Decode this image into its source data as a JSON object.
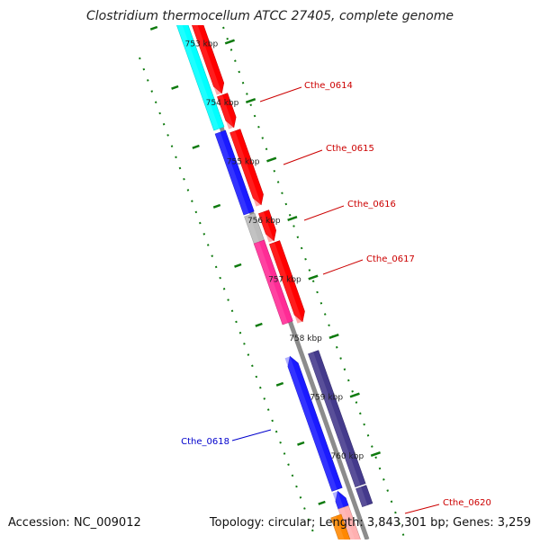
{
  "title": "Clostridium thermocellum ATCC 27405, complete genome",
  "accession_text": "Accession: NC_009012",
  "topology_text": "Topology: circular; Length: 3,843,301 bp; Genes: 3,259",
  "scale": {
    "unit_labels": [
      "753 kbp",
      "754 kbp",
      "755 kbp",
      "756 kbp",
      "757 kbp",
      "758 kbp",
      "759 kbp",
      "760 kbp"
    ]
  },
  "features": [
    {
      "label": "Cthe_0614",
      "color": "#cc0000"
    },
    {
      "label": "Cthe_0615",
      "color": "#cc0000"
    },
    {
      "label": "Cthe_0616",
      "color": "#cc0000"
    },
    {
      "label": "Cthe_0617",
      "color": "#cc0000"
    },
    {
      "label": "Cthe_0618",
      "color": "#0000cc"
    },
    {
      "label": "Cthe_0620",
      "color": "#cc0000"
    }
  ],
  "track_colors": {
    "cds_red": "#ff0000",
    "cds_blue": "#1a1aff",
    "cds_navy": "#443a8c",
    "cyan": "#00ffff",
    "grey": "#bbbbbb",
    "pink": "#ff2b95",
    "orange": "#ff8800",
    "backbone": "#8c8c8c",
    "tick_green": "#0e7a0e"
  }
}
